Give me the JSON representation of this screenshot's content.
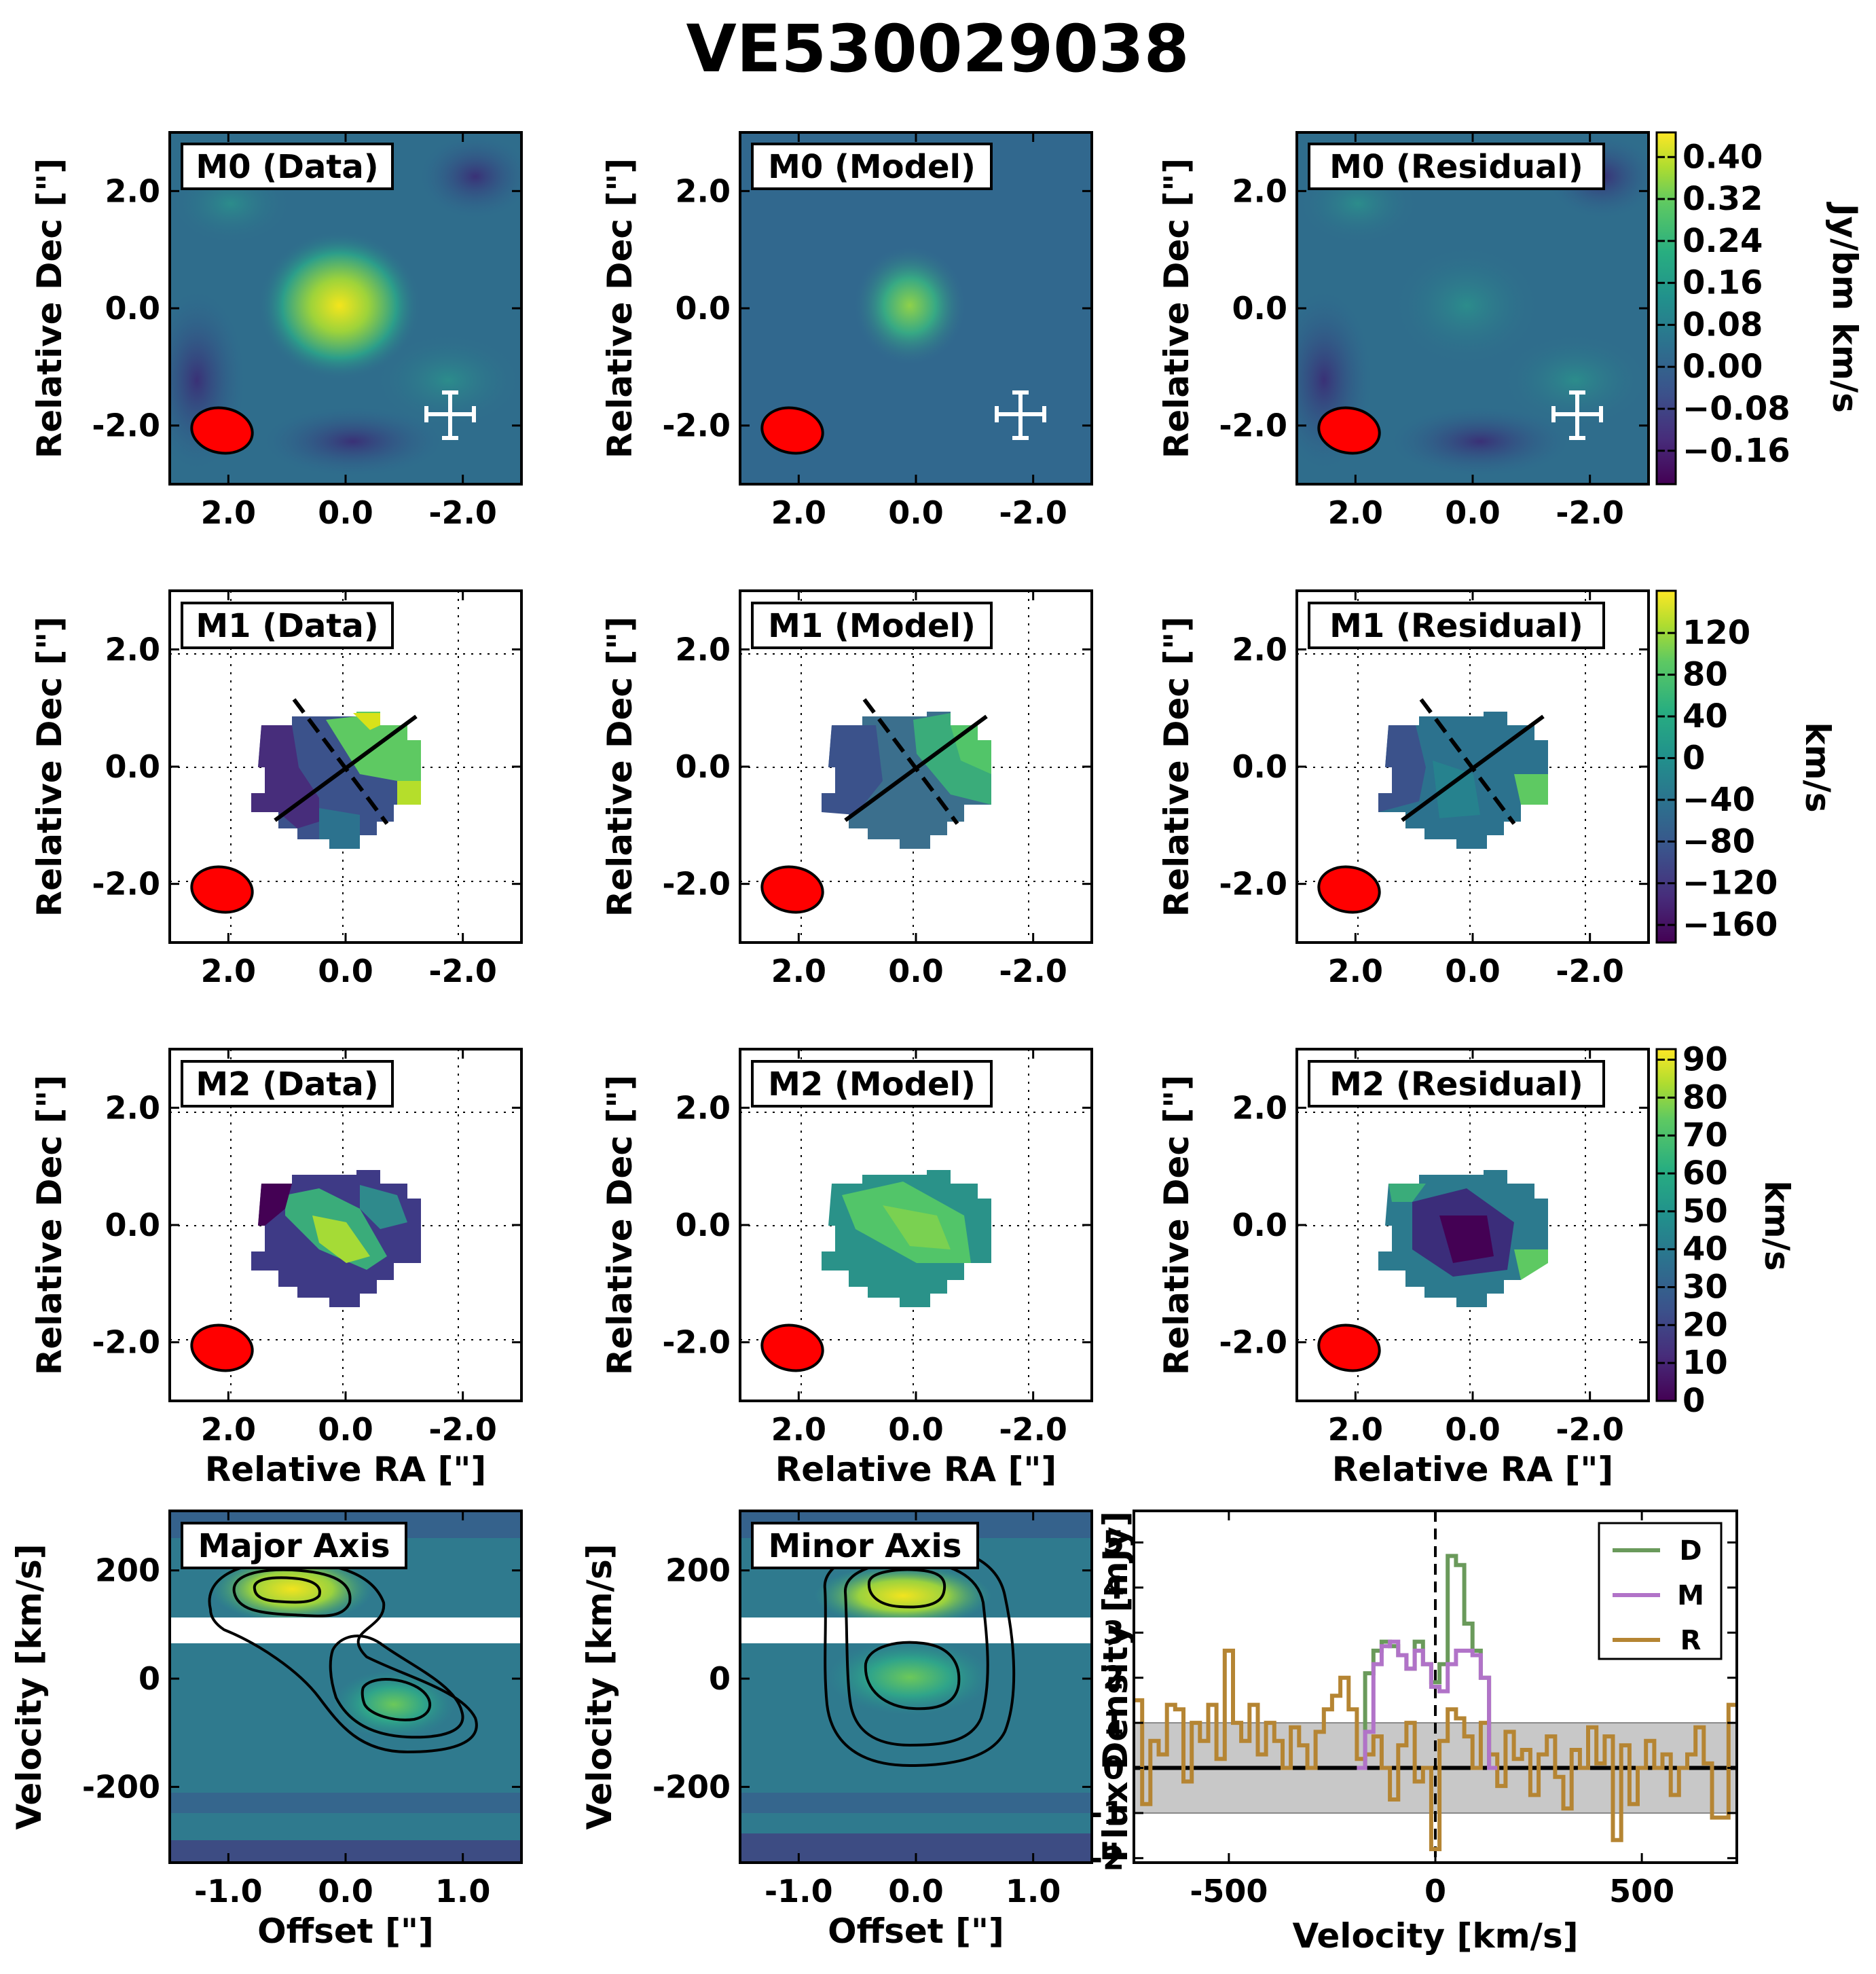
{
  "title": "VE530029038",
  "colors": {
    "beam": "#ff0000",
    "data_line": "#6a9a5b",
    "model_line": "#b173c8",
    "residual_line": "#b58533",
    "noise_band": "#c8c8c8",
    "cmap": "viridis"
  },
  "map_axes": {
    "xlabel": "Relative RA [\"]",
    "ylabel": "Relative Dec [\"]",
    "xticks": [
      "2.0",
      "0.0",
      "-2.0"
    ],
    "yticks": [
      "2.0",
      "0.0",
      "-2.0"
    ],
    "xlim": [
      3.0,
      -3.0
    ],
    "ylim": [
      -3.0,
      3.0
    ]
  },
  "panels": {
    "m0_data": "M0 (Data)",
    "m0_model": "M0 (Model)",
    "m0_residual": "M0 (Residual)",
    "m1_data": "M1 (Data)",
    "m1_model": "M1 (Model)",
    "m1_residual": "M1 (Residual)",
    "m2_data": "M2 (Data)",
    "m2_model": "M2 (Model)",
    "m2_residual": "M2 (Residual)",
    "pv_major": "Major Axis",
    "pv_minor": "Minor Axis"
  },
  "colorbars": {
    "m0": {
      "label": "Jy/bm km/s",
      "ticks": [
        "0.40",
        "0.32",
        "0.24",
        "0.16",
        "0.08",
        "0.00",
        "−0.08",
        "−0.16"
      ]
    },
    "m1": {
      "label": "km/s",
      "ticks": [
        "120",
        "80",
        "40",
        "0",
        "−40",
        "−80",
        "−120",
        "−160"
      ]
    },
    "m2": {
      "label": "km/s",
      "ticks": [
        "90",
        "80",
        "70",
        "60",
        "50",
        "40",
        "30",
        "20",
        "10",
        "0"
      ]
    }
  },
  "pv_axes": {
    "xlabel": "Offset [\"]",
    "ylabel": "Velocity [km/s]",
    "xticks": [
      "-1.0",
      "0.0",
      "1.0"
    ],
    "yticks": [
      "200",
      "0",
      "-200"
    ],
    "xlim": [
      -1.5,
      1.5
    ],
    "ylim": [
      -340,
      310
    ]
  },
  "chart_data": {
    "type": "line",
    "title": "",
    "xlabel": "Velocity [km/s]",
    "ylabel": "Flux Density [mJy]",
    "xticks": [
      "-500",
      "0",
      "500"
    ],
    "yticks": [
      "5",
      "4",
      "3",
      "2",
      "1",
      "0",
      "-1",
      "-2"
    ],
    "xlim": [
      -730,
      730
    ],
    "ylim": [
      -2.1,
      5.7
    ],
    "noise_band": [
      -1.0,
      1.0
    ],
    "systemic_velocity": 0,
    "legend_position": "top-right",
    "series": [
      {
        "name": "D",
        "x": [
          -180,
          -160,
          -140,
          -120,
          -100,
          -80,
          -60,
          -40,
          -20,
          0,
          20,
          40,
          60,
          80,
          100,
          120,
          140
        ],
        "values": [
          0,
          2.1,
          2.6,
          2.8,
          2.7,
          2.5,
          2.2,
          2.8,
          2.3,
          1.9,
          2.3,
          4.7,
          4.5,
          3.2,
          2.6,
          2.0,
          0
        ]
      },
      {
        "name": "M",
        "x": [
          -180,
          -160,
          -140,
          -120,
          -100,
          -80,
          -60,
          -40,
          -20,
          0,
          20,
          40,
          60,
          80,
          100,
          120,
          140
        ],
        "values": [
          0,
          0.8,
          2.3,
          2.7,
          2.8,
          2.5,
          2.2,
          2.6,
          2.3,
          1.8,
          1.7,
          2.3,
          2.6,
          2.6,
          2.5,
          2.0,
          0
        ]
      },
      {
        "name": "R",
        "x": [
          -720,
          -700,
          -680,
          -660,
          -640,
          -620,
          -600,
          -580,
          -560,
          -540,
          -520,
          -500,
          -480,
          -460,
          -440,
          -420,
          -400,
          -380,
          -360,
          -340,
          -320,
          -300,
          -280,
          -260,
          -240,
          -220,
          -200,
          -180,
          -160,
          -140,
          -120,
          -100,
          -80,
          -60,
          -40,
          -20,
          0,
          20,
          40,
          60,
          80,
          100,
          120,
          140,
          160,
          180,
          200,
          220,
          240,
          260,
          280,
          300,
          320,
          340,
          360,
          380,
          400,
          420,
          440,
          460,
          480,
          500,
          520,
          540,
          560,
          580,
          600,
          620,
          640,
          660,
          680,
          700,
          720
        ],
        "values": [
          1.5,
          -0.8,
          0.6,
          0.3,
          1.4,
          1.3,
          -0.3,
          1.0,
          0.6,
          1.4,
          0.2,
          2.6,
          1.0,
          0.6,
          1.4,
          0.3,
          1.0,
          0.6,
          0.0,
          0.9,
          0.5,
          0.0,
          0.8,
          1.3,
          1.6,
          2.0,
          1.3,
          0.2,
          0.3,
          0.7,
          0.0,
          -0.7,
          0.5,
          1.0,
          -0.3,
          0.0,
          -1.8,
          0.6,
          1.3,
          1.1,
          0.7,
          0.0,
          1.0,
          0.3,
          -0.4,
          0.8,
          0.2,
          0.4,
          -0.6,
          0.3,
          0.7,
          -0.2,
          -0.9,
          0.4,
          0.0,
          0.9,
          0.1,
          0.7,
          -1.6,
          0.5,
          -0.8,
          0.0,
          0.6,
          0.0,
          0.3,
          -0.6,
          0.0,
          0.3,
          0.9,
          0.1,
          -1.1,
          -1.1,
          1.4
        ]
      }
    ]
  }
}
